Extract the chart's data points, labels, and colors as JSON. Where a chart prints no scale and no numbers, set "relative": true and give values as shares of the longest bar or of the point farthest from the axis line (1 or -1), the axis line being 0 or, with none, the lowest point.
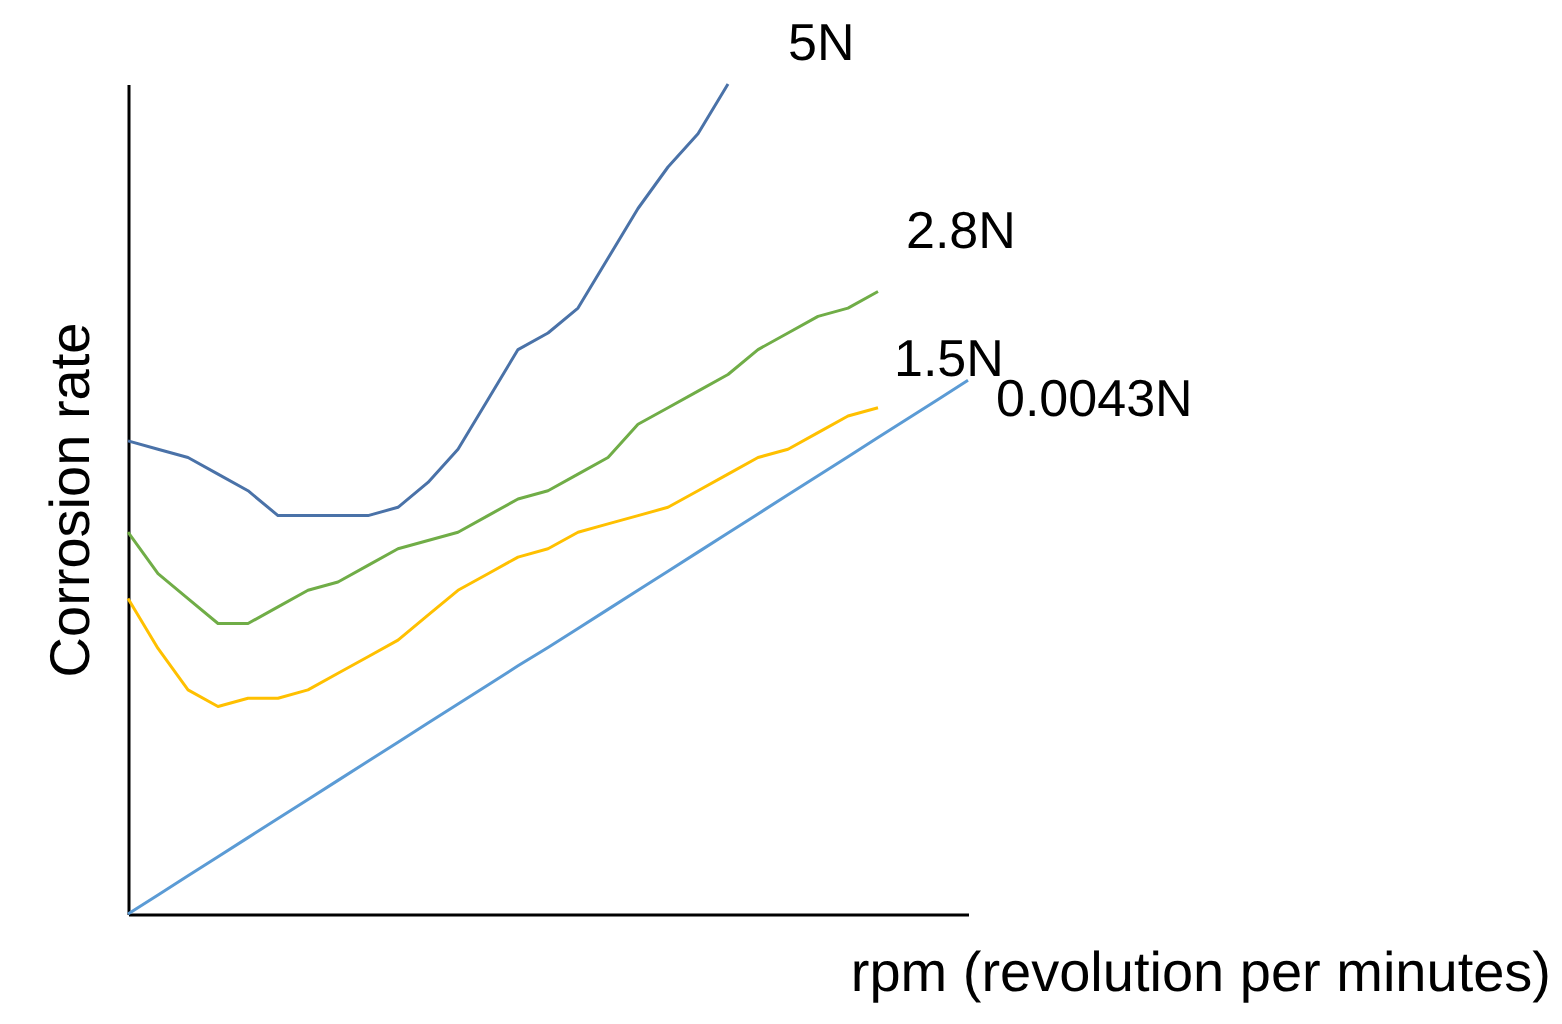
{
  "chart_data": {
    "type": "line",
    "relative": true,
    "xlabel": "rpm (revolution per minutes)",
    "ylabel": "Corrosion rate",
    "categories": [
      null,
      null,
      null,
      null,
      null,
      null,
      null,
      null,
      null,
      null,
      null,
      null,
      null,
      null,
      null,
      null,
      null,
      null,
      null,
      null,
      null,
      null,
      null,
      null,
      null,
      null,
      null,
      null,
      null
    ],
    "series": [
      {
        "name": "5N",
        "color": "#4a72a8",
        "values": [
          0.57,
          0.56,
          0.55,
          0.53,
          0.51,
          0.48,
          0.48,
          0.48,
          0.48,
          0.49,
          0.52,
          0.56,
          0.62,
          0.68,
          0.7,
          0.73,
          0.79,
          0.85,
          0.9,
          0.94,
          1.0,
          null,
          null,
          null,
          null,
          null,
          null,
          null,
          null
        ]
      },
      {
        "name": "2.8N",
        "color": "#70ad47",
        "values": [
          0.46,
          0.41,
          0.38,
          0.35,
          0.35,
          0.37,
          0.39,
          0.4,
          0.42,
          0.44,
          0.45,
          0.46,
          0.48,
          0.5,
          0.51,
          0.53,
          0.55,
          0.59,
          0.61,
          0.63,
          0.65,
          0.68,
          0.7,
          0.72,
          0.73,
          0.75,
          null,
          null,
          null
        ]
      },
      {
        "name": "1.5N",
        "color": "#ffc000",
        "values": [
          0.38,
          0.32,
          0.27,
          0.25,
          0.26,
          0.26,
          0.27,
          0.29,
          0.31,
          0.33,
          0.36,
          0.39,
          0.41,
          0.43,
          0.44,
          0.46,
          0.47,
          0.48,
          0.49,
          0.51,
          0.53,
          0.55,
          0.56,
          0.58,
          0.6,
          0.61,
          null,
          null,
          null
        ]
      },
      {
        "name": "0.0043N",
        "color": "#5b9bd5",
        "values": [
          0,
          0.023,
          0.046,
          0.069,
          0.092,
          0.115,
          0.138,
          0.161,
          0.184,
          0.207,
          0.23,
          0.253,
          0.276,
          0.299,
          0.321,
          0.344,
          0.367,
          0.39,
          0.413,
          0.436,
          0.459,
          0.482,
          0.505,
          0.528,
          0.551,
          0.574,
          0.597,
          0.62,
          0.643
        ]
      }
    ]
  }
}
